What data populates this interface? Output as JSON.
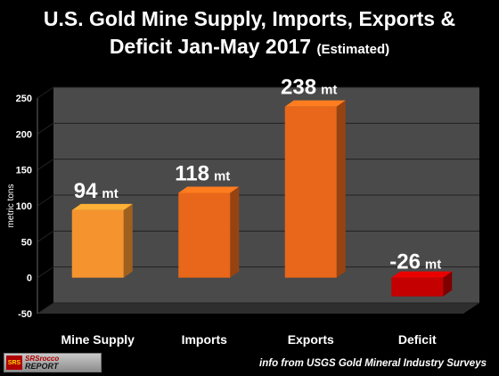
{
  "title_line1": "U.S. Gold Mine Supply, Imports, Exports &",
  "title_line2": "Deficit Jan-May 2017",
  "subtitle": "(Estimated)",
  "source": "info from USGS Gold Mineral Industry Surveys",
  "logo": {
    "mark": "SRS",
    "line1": "SRSrocco",
    "line2": "REPORT"
  },
  "colors": {
    "background": "#000000",
    "wall": "#4a4a4a",
    "orange_light": "#f5932e",
    "orange": "#e8671a",
    "red": "#c40000"
  },
  "chart_data": {
    "type": "bar",
    "title": "U.S. Gold Mine Supply, Imports, Exports & Deficit Jan-May 2017 (Estimated)",
    "categories": [
      "Mine Supply",
      "Imports",
      "Exports",
      "Deficit"
    ],
    "values": [
      94,
      118,
      238,
      -26
    ],
    "data_labels": [
      "94",
      "118",
      "238",
      "-26"
    ],
    "label_unit": "mt",
    "ylabel": "metric tons",
    "xlabel": "",
    "ylim": [
      -50,
      250
    ],
    "yticks": [
      -50,
      0,
      50,
      100,
      150,
      200,
      250
    ],
    "grid": true,
    "legend": "none",
    "three_d": true
  }
}
